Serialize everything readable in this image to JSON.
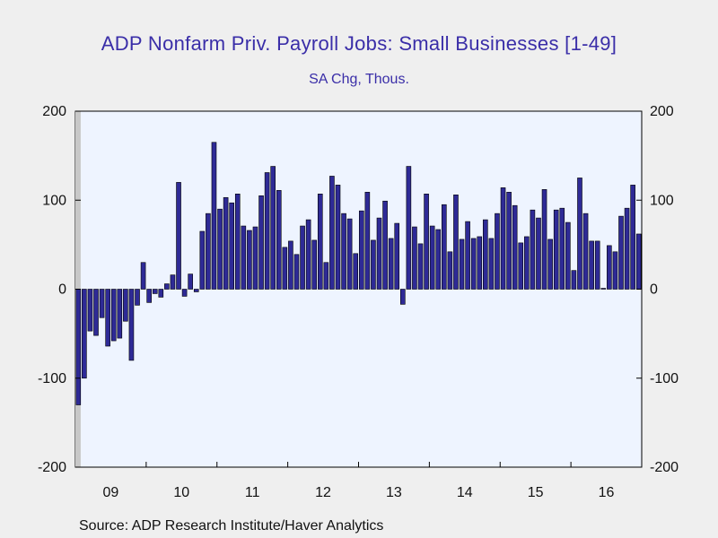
{
  "title": "ADP Nonfarm Priv. Payroll Jobs: Small Businesses [1-49]",
  "subtitle": "SA Chg, Thous.",
  "source": "Source:  ADP Research Institute/Haver Analytics",
  "colors": {
    "bar_fill": "#2e2a96",
    "plot_bg": "#eef4ff",
    "recession": "#c8c8c8",
    "title": "#3a2ea8"
  },
  "chart_data": {
    "type": "bar",
    "title": "ADP Nonfarm Priv. Payroll Jobs: Small Businesses [1-49]",
    "subtitle": "SA Chg, Thous.",
    "xlabel": "",
    "ylabel": "",
    "ylim": [
      -200,
      200
    ],
    "yticks": [
      -200,
      -100,
      0,
      100,
      200
    ],
    "ytick_labels": [
      "-200",
      "-100",
      "0",
      "100",
      "200"
    ],
    "dual_y_axis": true,
    "grid": false,
    "x_tick_labels": [
      "09",
      "10",
      "11",
      "12",
      "13",
      "14",
      "15",
      "16"
    ],
    "start": "2009-01",
    "recession_shading": {
      "start": "2009-01",
      "end": "2009-06"
    },
    "values": [
      -130,
      -100,
      -47,
      -52,
      -32,
      -64,
      -58,
      -55,
      -36,
      -80,
      -18,
      30,
      -15,
      -5,
      -9,
      6,
      16,
      120,
      -8,
      17,
      -3,
      65,
      85,
      165,
      90,
      103,
      97,
      107,
      71,
      66,
      70,
      105,
      131,
      138,
      111,
      47,
      54,
      39,
      71,
      78,
      55,
      107,
      30,
      127,
      117,
      85,
      79,
      40,
      88,
      109,
      55,
      80,
      99,
      57,
      74,
      -17,
      138,
      70,
      51,
      107,
      71,
      67,
      95,
      42,
      106,
      56,
      76,
      57,
      59,
      78,
      57,
      85,
      114,
      109,
      94,
      52,
      59,
      89,
      80,
      112,
      56,
      89,
      91,
      75,
      21,
      125,
      85,
      54,
      54,
      1,
      49,
      42,
      82,
      91,
      117,
      62
    ]
  }
}
